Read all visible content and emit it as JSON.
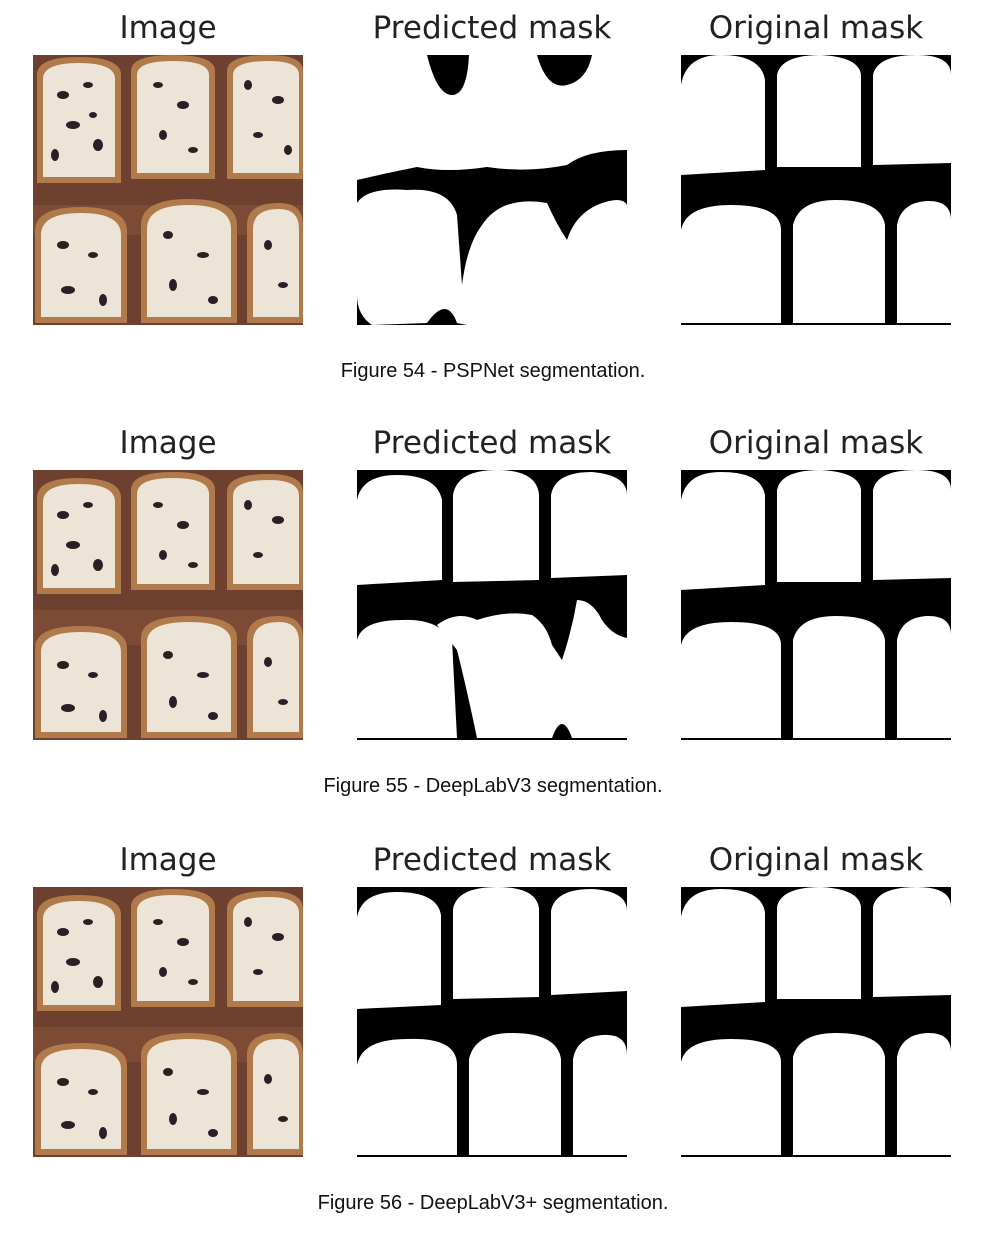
{
  "figures": [
    {
      "panel_titles": [
        "Image",
        "Predicted mask",
        "Original mask"
      ],
      "caption": "Figure 54 - PSPNet segmentation."
    },
    {
      "panel_titles": [
        "Image",
        "Predicted mask",
        "Original mask"
      ],
      "caption": "Figure 55 - DeepLabV3 segmentation."
    },
    {
      "panel_titles": [
        "Image",
        "Predicted mask",
        "Original mask"
      ],
      "caption": "Figure 56 - DeepLabV3+ segmentation."
    }
  ],
  "colors": {
    "mask_foreground": "#ffffff",
    "mask_background": "#000000",
    "bread_crust": "#b07a4a",
    "bread_crumb": "#ece4d6",
    "raisin": "#2a1f24",
    "table": "#6e4030"
  }
}
